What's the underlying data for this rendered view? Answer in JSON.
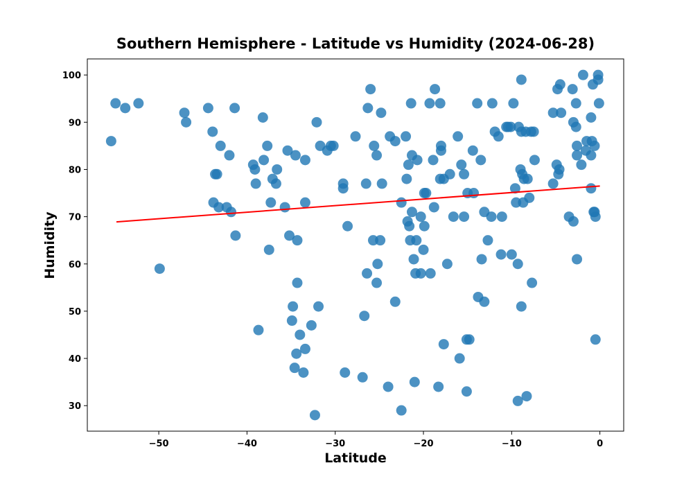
{
  "chart_data": {
    "type": "scatter",
    "title": "Southern Hemisphere - Latitude vs Humidity (2024-06-28)",
    "x_label": "Latitude",
    "y_label": "Humidity",
    "series": [
      {
        "color": "#1f77b4",
        "x": [
          -55.4,
          -54.9,
          -53.8,
          -52.3,
          -49.9,
          -47.1,
          -46.9,
          -44.4,
          -43.9,
          -43.8,
          -43.6,
          -43.4,
          -43.2,
          -43,
          -42.3,
          -42,
          -41.8,
          -41.4,
          -41.3,
          -39.3,
          -39.1,
          -39,
          -38.7,
          -38.2,
          -38.1,
          -37.7,
          -37.5,
          -37.3,
          -37.1,
          -36.7,
          -36.6,
          -35.7,
          -35.4,
          -35.2,
          -34.9,
          -34.8,
          -34.6,
          -34.5,
          -34.4,
          -34.3,
          -34.3,
          -34,
          -33.6,
          -33.4,
          -33.4,
          -33.4,
          -32.7,
          -32.3,
          -32.1,
          -31.9,
          -31.7,
          -30.9,
          -30.5,
          -30.2,
          -29.1,
          -29.1,
          -28.9,
          -28.6,
          -27.7,
          -26.9,
          -26.7,
          -26.5,
          -26.4,
          -26.3,
          -26,
          -25.7,
          -25.6,
          -25.3,
          -25.3,
          -25.2,
          -24.9,
          -24.8,
          -24.7,
          -24,
          -23.8,
          -23.2,
          -23.2,
          -22.5,
          -22.5,
          -22,
          -21.9,
          -21.8,
          -21.7,
          -21.6,
          -21.5,
          -21.4,
          -21.3,
          -21.3,
          -21.1,
          -21,
          -20.9,
          -20.8,
          -20.7,
          -20.3,
          -20.3,
          -20,
          -19.9,
          -19.9,
          -19.7,
          -19.3,
          -19.2,
          -18.9,
          -18.8,
          -18.7,
          -18.3,
          -18.1,
          -18.1,
          -18,
          -18,
          -17.7,
          -17.7,
          -17.3,
          -17,
          -16.6,
          -16.1,
          -15.9,
          -15.7,
          -15.4,
          -15.4,
          -15.1,
          -15.1,
          -15,
          -14.8,
          -14.4,
          -14.3,
          -13.9,
          -13.8,
          -13.5,
          -13.4,
          -13.1,
          -13.1,
          -12.7,
          -12.3,
          -12.2,
          -11.9,
          -11.5,
          -11.2,
          -11.1,
          -10.6,
          -10.4,
          -10.1,
          -10,
          -9.8,
          -9.6,
          -9.5,
          -9.3,
          -9.3,
          -9.2,
          -9,
          -8.9,
          -8.9,
          -8.9,
          -8.8,
          -8.7,
          -8.6,
          -8.4,
          -8.3,
          -8.2,
          -8,
          -7.8,
          -7.7,
          -7.5,
          -7.4,
          -5.3,
          -5.3,
          -4.9,
          -4.8,
          -4.7,
          -4.6,
          -4.5,
          -4.4,
          -3.5,
          -3.1,
          -3,
          -3,
          -2.7,
          -2.7,
          -2.6,
          -2.6,
          -2.6,
          -2.1,
          -1.9,
          -1.6,
          -1.5,
          -1,
          -1,
          -1,
          -0.9,
          -0.8,
          -0.7,
          -0.6,
          -0.6,
          -0.5,
          -0.5,
          -0.2,
          -0.2,
          -0.1
        ],
        "values": [
          86,
          94,
          93,
          94,
          59,
          92,
          90,
          93,
          88,
          73,
          79,
          79,
          72,
          85,
          72,
          83,
          71,
          93,
          66,
          81,
          80,
          77,
          46,
          91,
          82,
          85,
          63,
          73,
          78,
          77,
          80,
          72,
          84,
          66,
          48,
          51,
          38,
          83,
          41,
          65,
          56,
          45,
          37,
          73,
          82,
          42,
          47,
          28,
          90,
          51,
          85,
          84,
          85,
          85,
          77,
          76,
          37,
          68,
          87,
          36,
          49,
          77,
          58,
          93,
          97,
          65,
          85,
          83,
          56,
          60,
          65,
          92,
          77,
          34,
          87,
          52,
          86,
          29,
          73,
          87,
          78,
          69,
          81,
          68,
          65,
          94,
          83,
          71,
          61,
          35,
          58,
          65,
          82,
          58,
          70,
          63,
          75,
          68,
          75,
          94,
          58,
          82,
          72,
          97,
          34,
          94,
          78,
          85,
          84,
          78,
          43,
          60,
          79,
          70,
          87,
          40,
          81,
          79,
          70,
          44,
          33,
          75,
          44,
          84,
          75,
          94,
          53,
          82,
          61,
          52,
          71,
          65,
          70,
          94,
          88,
          87,
          62,
          70,
          89,
          89,
          89,
          62,
          94,
          76,
          73,
          31,
          60,
          89,
          80,
          99,
          88,
          51,
          79,
          73,
          78,
          88,
          32,
          78,
          74,
          88,
          56,
          88,
          82,
          92,
          77,
          81,
          97,
          79,
          80,
          98,
          92,
          70,
          97,
          69,
          90,
          89,
          94,
          83,
          85,
          61,
          81,
          100,
          84,
          86,
          91,
          83,
          76,
          86,
          98,
          71,
          85,
          71,
          70,
          44,
          99,
          100,
          94
        ]
      }
    ],
    "fit": {
      "x": [
        -54.8,
        0
      ],
      "values": [
        68.9,
        76.5
      ],
      "color": "red"
    },
    "xlim": [
      -58.1,
      2.7
    ],
    "ylim": [
      24.6,
      103.4
    ],
    "xticks": [
      {
        "value": -50,
        "label": "−50"
      },
      {
        "value": -40,
        "label": "−40"
      },
      {
        "value": -30,
        "label": "−30"
      },
      {
        "value": -20,
        "label": "−20"
      },
      {
        "value": -10,
        "label": "−10"
      },
      0
    ],
    "yticks": [
      30,
      40,
      50,
      60,
      70,
      80,
      90,
      100
    ]
  }
}
